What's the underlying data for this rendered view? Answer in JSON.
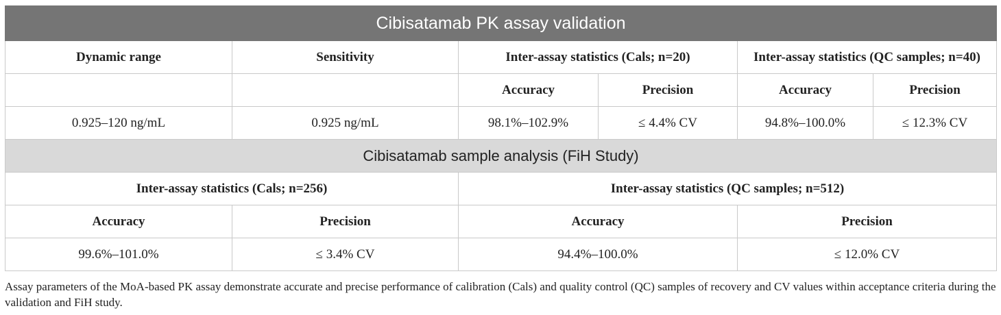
{
  "validation": {
    "title": "Cibisatamab PK assay validation",
    "headers": {
      "dynamic_range": "Dynamic range",
      "sensitivity": "Sensitivity",
      "inter_cals": "Inter-assay statistics (Cals; n=20)",
      "inter_qc": "Inter-assay statistics (QC samples; n=40)"
    },
    "sub_headers": {
      "cals_accuracy": "Accuracy",
      "cals_precision": "Precision",
      "qc_accuracy": "Accuracy",
      "qc_precision": "Precision"
    },
    "values": {
      "dynamic_range": "0.925–120 ng/mL",
      "sensitivity": "0.925 ng/mL",
      "cals_accuracy": "98.1%–102.9%",
      "cals_precision": "≤ 4.4% CV",
      "qc_accuracy": "94.8%–100.0%",
      "qc_precision": "≤ 12.3% CV"
    }
  },
  "analysis": {
    "title": "Cibisatamab sample analysis (FiH Study)",
    "headers": {
      "inter_cals": "Inter-assay statistics (Cals; n=256)",
      "inter_qc": "Inter-assay statistics (QC samples; n=512)"
    },
    "sub_headers": {
      "cals_accuracy": "Accuracy",
      "cals_precision": "Precision",
      "qc_accuracy": "Accuracy",
      "qc_precision": "Precision"
    },
    "values": {
      "cals_accuracy": "99.6%–101.0%",
      "cals_precision": "≤ 3.4% CV",
      "qc_accuracy": "94.4%–100.0%",
      "qc_precision": "≤ 12.0% CV"
    }
  },
  "caption": "Assay parameters of the MoA-based PK assay demonstrate accurate and precise performance of calibration (Cals) and quality control (QC) samples of recovery and CV values within acceptance criteria during the validation and FiH study."
}
